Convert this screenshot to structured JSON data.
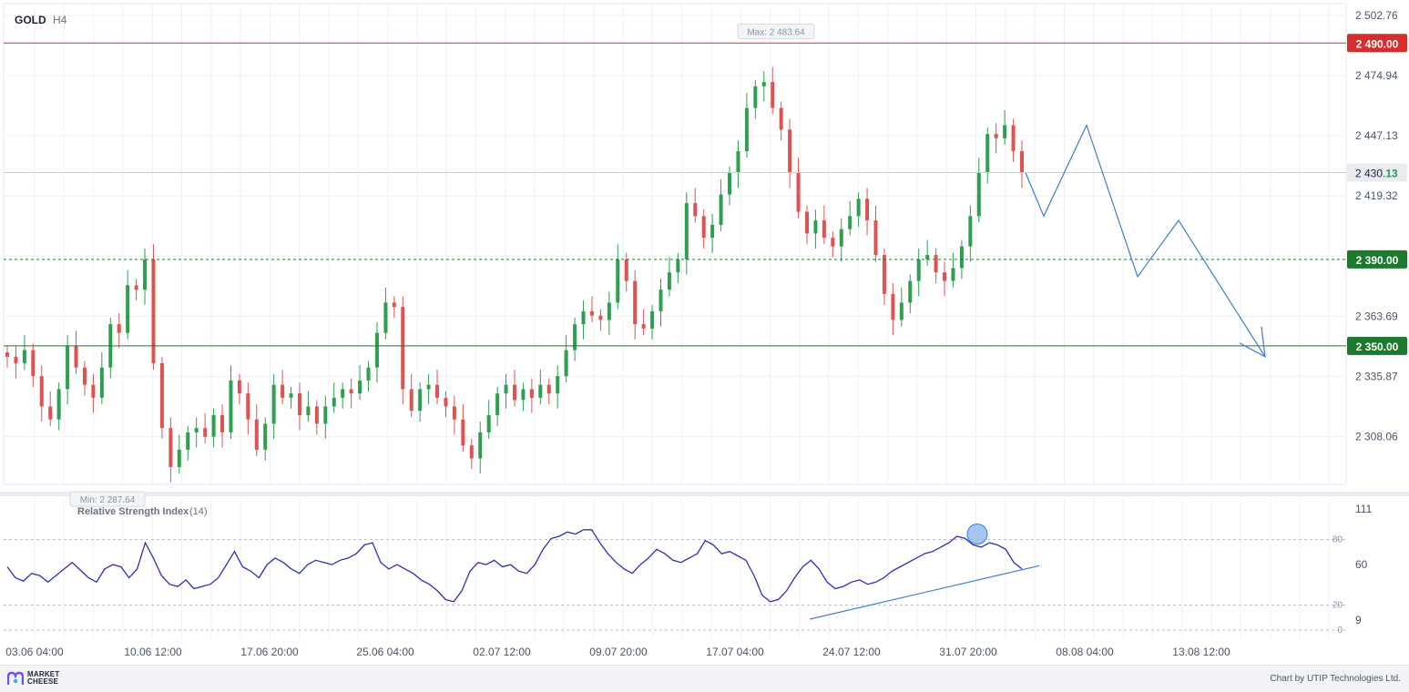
{
  "header": {
    "symbol": "GOLD",
    "timeframe": "H4"
  },
  "chart_data": {
    "type": "candlestick",
    "symbol": "GOLD",
    "timeframe": "H4",
    "ylim": [
      2287.64,
      2502.76
    ],
    "y_ticks": [
      "2 502.76",
      "2 474.94",
      "2 447.13",
      "2 419.32",
      "2 363.69",
      "2 335.87",
      "2 308.06"
    ],
    "x_ticks": [
      "03.06 04:00",
      "10.06 12:00",
      "17.06 20:00",
      "25.06 04:00",
      "02.07 12:00",
      "09.07 20:00",
      "17.07 04:00",
      "24.07 12:00",
      "31.07 20:00",
      "08.08 04:00",
      "13.08 12:00"
    ],
    "max_label": "Max: 2 483.64",
    "min_label": "Min: 2 287.64",
    "max_value": 2483.64,
    "min_value": 2287.64,
    "current_price": {
      "label_main": "2 430.",
      "label_tail": "13",
      "value": 2430.13
    },
    "levels": [
      {
        "label": "2 490.00",
        "value": 2490.0,
        "color": "#d32f2f",
        "style": "solid"
      },
      {
        "label": "2 390.00",
        "value": 2390.0,
        "color": "#1b7a2e",
        "style": "dashed"
      },
      {
        "label": "2 350.00",
        "value": 2350.0,
        "color": "#1b7a2e",
        "style": "solid"
      }
    ],
    "candles_close": [
      2345,
      2342,
      2348,
      2336,
      2322,
      2316,
      2330,
      2350,
      2340,
      2332,
      2326,
      2340,
      2360,
      2356,
      2378,
      2376,
      2390,
      2342,
      2312,
      2294,
      2302,
      2310,
      2312,
      2308,
      2318,
      2310,
      2334,
      2328,
      2316,
      2302,
      2314,
      2332,
      2326,
      2328,
      2318,
      2322,
      2314,
      2322,
      2326,
      2330,
      2328,
      2334,
      2340,
      2356,
      2370,
      2368,
      2330,
      2320,
      2330,
      2332,
      2326,
      2322,
      2316,
      2304,
      2298,
      2310,
      2318,
      2328,
      2332,
      2325,
      2330,
      2326,
      2332,
      2328,
      2336,
      2348,
      2360,
      2366,
      2364,
      2362,
      2370,
      2390,
      2380,
      2360,
      2358,
      2366,
      2376,
      2384,
      2390,
      2416,
      2410,
      2400,
      2406,
      2420,
      2430,
      2440,
      2460,
      2470,
      2472,
      2460,
      2450,
      2430,
      2412,
      2402,
      2408,
      2400,
      2396,
      2404,
      2410,
      2418,
      2408,
      2392,
      2374,
      2362,
      2370,
      2380,
      2390,
      2392,
      2384,
      2380,
      2386,
      2396,
      2410,
      2430,
      2448,
      2446,
      2452,
      2440,
      2430
    ],
    "reference_lines": [
      {
        "label": "",
        "y": 2430.13
      }
    ],
    "forecast_path": [
      {
        "x": "02.08 04:00",
        "y": 2430
      },
      {
        "x": "03.08 04:00",
        "y": 2410
      },
      {
        "x": "04.08 04:00",
        "y": 2452
      },
      {
        "x": "06.08 08:00",
        "y": 2382
      },
      {
        "x": "07.08 12:00",
        "y": 2408
      },
      {
        "x": "09.08 20:00",
        "y": 2345
      }
    ],
    "rsi": {
      "title": "Relative Strength Index",
      "period_label": "(14)",
      "y_ticks": [
        "111",
        "60",
        "9"
      ],
      "levels": [
        {
          "label": "80",
          "value": 80
        },
        {
          "label": "20",
          "value": 20
        },
        {
          "label": "0",
          "value": 0
        }
      ],
      "values": [
        58,
        48,
        45,
        52,
        50,
        44,
        50,
        56,
        62,
        55,
        48,
        44,
        56,
        60,
        58,
        48,
        56,
        80,
        66,
        50,
        42,
        40,
        46,
        38,
        40,
        42,
        48,
        60,
        72,
        58,
        54,
        48,
        60,
        66,
        62,
        56,
        52,
        60,
        64,
        62,
        60,
        64,
        66,
        70,
        78,
        80,
        62,
        56,
        60,
        56,
        52,
        46,
        42,
        36,
        28,
        26,
        36,
        54,
        62,
        60,
        64,
        58,
        60,
        54,
        52,
        60,
        74,
        84,
        86,
        90,
        88,
        92,
        92,
        80,
        70,
        62,
        56,
        52,
        60,
        66,
        74,
        70,
        64,
        62,
        66,
        70,
        82,
        78,
        70,
        72,
        68,
        64,
        50,
        32,
        26,
        28,
        36,
        48,
        58,
        64,
        56,
        44,
        38,
        40,
        44,
        46,
        42,
        44,
        48,
        54,
        58,
        62,
        66,
        70,
        72,
        76,
        80,
        86,
        84,
        78,
        76,
        80,
        78,
        74,
        62,
        56
      ],
      "trendline": [
        {
          "x": "21.07 00:00",
          "y": 10
        },
        {
          "x": "03.08 04:00",
          "y": 59
        }
      ],
      "highlight_marker": {
        "x": "31.07 20:00",
        "y": 88
      }
    }
  },
  "footer": {
    "logo_line1": "MARKET",
    "logo_line2": "CHEESE",
    "credit": "Chart by UTIP Technologies Ltd."
  }
}
